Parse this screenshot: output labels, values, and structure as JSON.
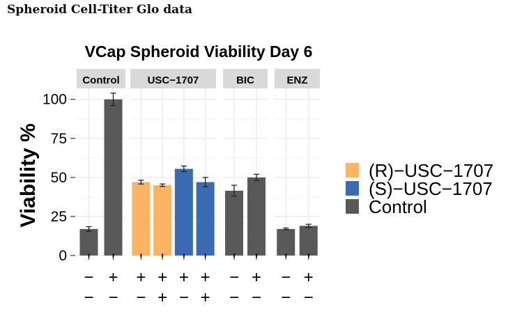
{
  "document": {
    "heading": "Spheroid Cell-Titer Glo data"
  },
  "chart_data": {
    "type": "bar",
    "title": "VCap Spheroid Viability Day 6",
    "xlabel": "",
    "ylabel": "Viability %",
    "ylim": [
      0,
      107
    ],
    "yticks": [
      "0",
      "25",
      "50",
      "75",
      "100"
    ],
    "grid": true,
    "legend_position": "right",
    "legend": [
      {
        "name": "(R)−USC−1707",
        "color": "#FDB462"
      },
      {
        "name": "(S)−USC−1707",
        "color": "#3B6AB5"
      },
      {
        "name": "Control",
        "color": "#595959"
      }
    ],
    "panels": [
      {
        "label": "Control",
        "bars": [
          {
            "value": 17,
            "error": 1.5,
            "group": "Control",
            "signs": [
              "'",
              "−",
              "−"
            ]
          },
          {
            "value": 100,
            "error": 4,
            "group": "Control",
            "signs": [
              "'",
              "+",
              "−"
            ]
          }
        ]
      },
      {
        "label": "USC−1707",
        "bars": [
          {
            "value": 47,
            "error": 1.2,
            "group": "(R)−USC−1707",
            "signs": [
              "'",
              "+",
              "−"
            ]
          },
          {
            "value": 45,
            "error": 0.8,
            "group": "(R)−USC−1707",
            "signs": [
              "'",
              "+",
              "+"
            ]
          },
          {
            "value": 55.5,
            "error": 1.8,
            "group": "(S)−USC−1707",
            "signs": [
              "'",
              "+",
              "−"
            ]
          },
          {
            "value": 47,
            "error": 3,
            "group": "(S)−USC−1707",
            "signs": [
              "'",
              "+",
              "+"
            ]
          }
        ]
      },
      {
        "label": "BIC",
        "bars": [
          {
            "value": 41.5,
            "error": 3.5,
            "group": "Control",
            "signs": [
              "'",
              "−",
              "−"
            ]
          },
          {
            "value": 50,
            "error": 2,
            "group": "Control",
            "signs": [
              "'",
              "+",
              "−"
            ]
          }
        ]
      },
      {
        "label": "ENZ",
        "bars": [
          {
            "value": 17,
            "error": 0.6,
            "group": "Control",
            "signs": [
              "'",
              "−",
              "−"
            ]
          },
          {
            "value": 19,
            "error": 1,
            "group": "Control",
            "signs": [
              "'",
              "+",
              "−"
            ]
          }
        ]
      }
    ]
  }
}
